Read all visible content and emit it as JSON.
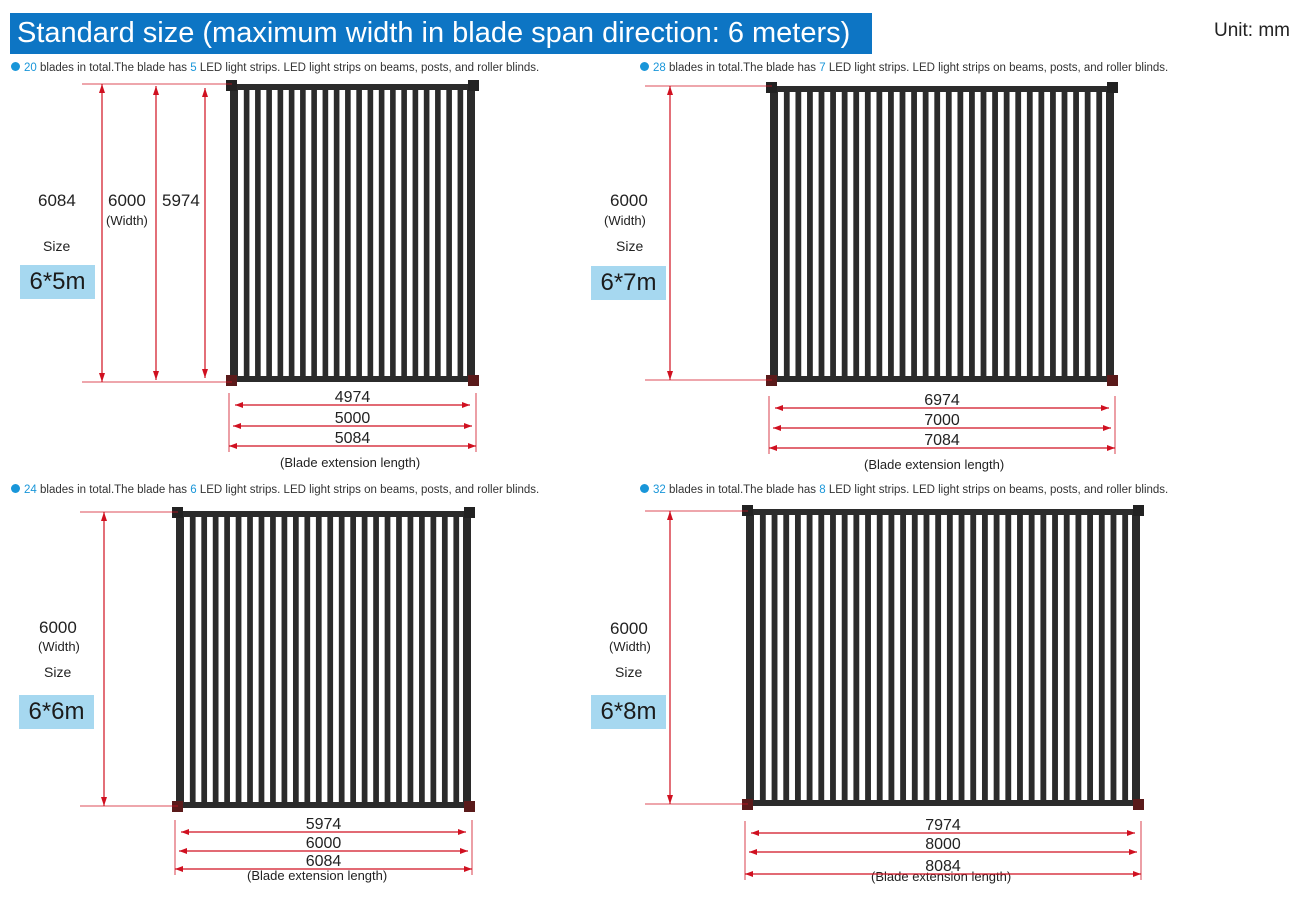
{
  "header": {
    "title": "Standard size (maximum width in blade span direction: 6 meters)",
    "unit": "Unit: mm"
  },
  "panels": [
    {
      "id": "p1",
      "caption": {
        "count": "20",
        "mid": " blades in total.The blade has ",
        "strips": "5",
        "tail": " LED light strips. LED light strips on beams, posts, and roller blinds."
      },
      "height_labels": [
        "6084",
        "6000",
        "5974"
      ],
      "width_word": "(Width)",
      "size_word": "Size",
      "size_badge": "6*5m",
      "length_dims": [
        "4974",
        "5000",
        "5084"
      ],
      "ext_label": "(Blade extension length)",
      "blades": 20
    },
    {
      "id": "p2",
      "caption": {
        "count": "28",
        "mid": " blades in total.The blade has ",
        "strips": "7",
        "tail": " LED light strips. LED light strips on beams, posts, and roller blinds."
      },
      "height_labels": [
        "6000"
      ],
      "width_word": "(Width)",
      "size_word": "Size",
      "size_badge": "6*7m",
      "length_dims": [
        "6974",
        "7000",
        "7084"
      ],
      "ext_label": "(Blade extension length)",
      "blades": 28
    },
    {
      "id": "p3",
      "caption": {
        "count": "24",
        "mid": " blades in total.The blade has ",
        "strips": "6",
        "tail": " LED light strips. LED light strips on beams, posts, and roller blinds."
      },
      "height_labels": [
        "6000"
      ],
      "width_word": "(Width)",
      "size_word": "Size",
      "size_badge": "6*6m",
      "length_dims": [
        "5974",
        "6000",
        "6084"
      ],
      "ext_label": "(Blade extension length)",
      "blades": 24
    },
    {
      "id": "p4",
      "caption": {
        "count": "32",
        "mid": " blades in total.The blade has ",
        "strips": "8",
        "tail": " LED light strips. LED light strips on beams, posts, and roller blinds."
      },
      "height_labels": [
        "6000"
      ],
      "width_word": "(Width)",
      "size_word": "Size",
      "size_badge": "6*8m",
      "length_dims": [
        "7974",
        "8000",
        "8084"
      ],
      "ext_label": "(Blade extension length)",
      "blades": 32
    }
  ],
  "colors": {
    "title_bg": "#0d75c4",
    "accent": "#1996d9",
    "dim_line": "#d01020",
    "frame": "#2b2b2b",
    "badge_bg": "#a6d8f0"
  }
}
